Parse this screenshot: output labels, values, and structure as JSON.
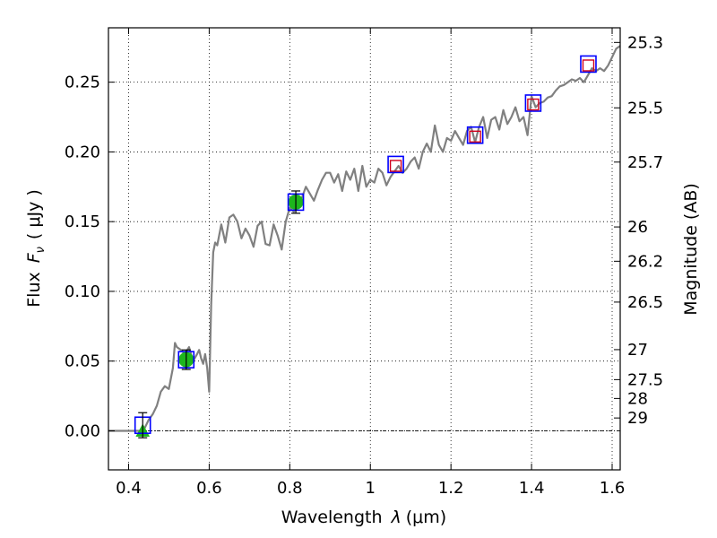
{
  "chart_data": {
    "type": "scatter",
    "xlabel_text": "Wavelength",
    "xlabel_symbol": "λ",
    "xlabel_unit": "(μm)",
    "ylabel_text": "Flux",
    "ylabel_symbol": "F",
    "ylabel_sub": "ν",
    "ylabel_unit": "( μJy )",
    "y2label": "Magnitude (AB)",
    "xlim": [
      0.35,
      1.62
    ],
    "ylim": [
      -0.028,
      0.289
    ],
    "xticks": [
      0.4,
      0.6,
      0.8,
      1.0,
      1.2,
      1.4,
      1.6
    ],
    "xtick_labels": [
      "0.4",
      "0.6",
      "0.8",
      "1",
      "1.2",
      "1.4",
      "1.6"
    ],
    "yticks": [
      0.0,
      0.05,
      0.1,
      0.15,
      0.2,
      0.25
    ],
    "ytick_labels": [
      "0.00",
      "0.05",
      "0.10",
      "0.15",
      "0.20",
      "0.25"
    ],
    "magnitude_ticks": [
      {
        "label": "25.3",
        "flux": 0.2785
      },
      {
        "label": "25.5",
        "flux": 0.2316
      },
      {
        "label": "25.7",
        "flux": 0.1927
      },
      {
        "label": "26",
        "flux": 0.1462
      },
      {
        "label": "26.2",
        "flux": 0.1216
      },
      {
        "label": "26.5",
        "flux": 0.0923
      },
      {
        "label": "27",
        "flux": 0.0582
      },
      {
        "label": "27.5",
        "flux": 0.0367
      },
      {
        "label": "28",
        "flux": 0.0232
      },
      {
        "label": "29",
        "flux": 0.0092
      }
    ],
    "model_sed": {
      "name": "model spectrum",
      "color": "#808080",
      "x": [
        0.35,
        0.435,
        0.44,
        0.45,
        0.46,
        0.47,
        0.48,
        0.49,
        0.5,
        0.51,
        0.515,
        0.52,
        0.53,
        0.54,
        0.55,
        0.56,
        0.57,
        0.575,
        0.58,
        0.585,
        0.59,
        0.595,
        0.6,
        0.605,
        0.61,
        0.615,
        0.62,
        0.63,
        0.64,
        0.65,
        0.66,
        0.67,
        0.68,
        0.69,
        0.7,
        0.71,
        0.72,
        0.73,
        0.74,
        0.75,
        0.76,
        0.77,
        0.78,
        0.79,
        0.8,
        0.81,
        0.82,
        0.83,
        0.84,
        0.85,
        0.86,
        0.87,
        0.88,
        0.89,
        0.9,
        0.91,
        0.92,
        0.93,
        0.94,
        0.95,
        0.96,
        0.97,
        0.98,
        0.99,
        1.0,
        1.01,
        1.02,
        1.03,
        1.04,
        1.05,
        1.06,
        1.07,
        1.08,
        1.09,
        1.1,
        1.11,
        1.12,
        1.13,
        1.14,
        1.15,
        1.16,
        1.17,
        1.18,
        1.19,
        1.2,
        1.21,
        1.22,
        1.23,
        1.24,
        1.25,
        1.26,
        1.27,
        1.28,
        1.29,
        1.3,
        1.31,
        1.32,
        1.33,
        1.34,
        1.35,
        1.36,
        1.37,
        1.38,
        1.39,
        1.4,
        1.41,
        1.42,
        1.43,
        1.44,
        1.45,
        1.46,
        1.47,
        1.48,
        1.49,
        1.5,
        1.51,
        1.52,
        1.53,
        1.54,
        1.55,
        1.56,
        1.57,
        1.58,
        1.59,
        1.6,
        1.61,
        1.62
      ],
      "y": [
        0.0,
        0.0,
        0.002,
        0.008,
        0.012,
        0.018,
        0.028,
        0.032,
        0.03,
        0.045,
        0.063,
        0.06,
        0.058,
        0.055,
        0.06,
        0.05,
        0.055,
        0.058,
        0.052,
        0.048,
        0.055,
        0.045,
        0.028,
        0.09,
        0.128,
        0.135,
        0.133,
        0.148,
        0.135,
        0.153,
        0.155,
        0.15,
        0.138,
        0.145,
        0.14,
        0.132,
        0.147,
        0.15,
        0.134,
        0.133,
        0.148,
        0.14,
        0.13,
        0.15,
        0.16,
        0.157,
        0.165,
        0.167,
        0.175,
        0.17,
        0.165,
        0.173,
        0.18,
        0.185,
        0.185,
        0.178,
        0.184,
        0.172,
        0.186,
        0.18,
        0.188,
        0.172,
        0.19,
        0.175,
        0.18,
        0.178,
        0.188,
        0.185,
        0.176,
        0.182,
        0.186,
        0.19,
        0.185,
        0.188,
        0.193,
        0.196,
        0.188,
        0.2,
        0.206,
        0.2,
        0.219,
        0.205,
        0.2,
        0.21,
        0.208,
        0.215,
        0.21,
        0.205,
        0.215,
        0.218,
        0.207,
        0.218,
        0.225,
        0.21,
        0.223,
        0.225,
        0.216,
        0.23,
        0.22,
        0.225,
        0.232,
        0.222,
        0.225,
        0.212,
        0.24,
        0.232,
        0.235,
        0.236,
        0.239,
        0.24,
        0.244,
        0.247,
        0.248,
        0.25,
        0.252,
        0.251,
        0.253,
        0.25,
        0.255,
        0.26,
        0.258,
        0.26,
        0.258,
        0.262,
        0.268,
        0.274,
        0.276
      ]
    },
    "photometry": {
      "name": "photometry (blue boxes)",
      "color": "#0000ff",
      "x": [
        0.435,
        0.543,
        0.815,
        1.063,
        1.26,
        1.404,
        1.541
      ],
      "y": [
        0.004,
        0.051,
        0.164,
        0.191,
        0.212,
        0.235,
        0.263
      ],
      "err": [
        0.009,
        0.007,
        0.008,
        0.0,
        0.0,
        0.0,
        0.0
      ]
    },
    "model_fluxes": {
      "name": "model fluxes (red boxes)",
      "color": "#d0001c",
      "x": [
        1.063,
        1.26,
        1.404,
        1.541
      ],
      "y": [
        0.19,
        0.211,
        0.234,
        0.262
      ]
    },
    "green_points": {
      "name": "green circles",
      "color": "#1db61d",
      "x": [
        0.543,
        0.815
      ],
      "y": [
        0.051,
        0.164
      ]
    },
    "upper_limit": {
      "name": "green triangle",
      "color": "#1db61d",
      "x": [
        0.435
      ],
      "y": [
        0.0
      ]
    }
  }
}
